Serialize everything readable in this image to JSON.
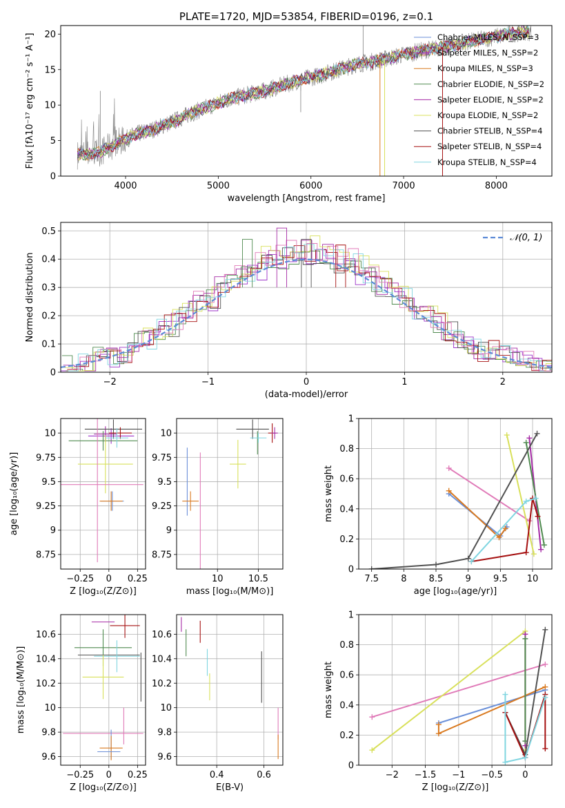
{
  "title": "PLATE=1720, MJD=53854, FIBERID=0196, z=0.1",
  "colors": {
    "Chabrier MILES": "#6a8fd8",
    "Salpeter MILES": "#9b30c8",
    "Kroupa MILES": "#d9791f",
    "Chabrier ELODIE": "#4f8a4f",
    "Salpeter ELODIE": "#a52aa5",
    "Kroupa ELODIE": "#d8e05a",
    "Chabrier STELIB": "#505050",
    "Salpeter STELIB": "#a50f0f",
    "Kroupa STELIB": "#7fd5e0",
    "spectrum": "#808080",
    "gaussian": "#5b8ad6",
    "pink": "#e07ab8"
  },
  "chart_data": [
    {
      "id": "spectrum",
      "type": "line",
      "xlabel": "wavelength [Angstrom, rest frame]",
      "ylabel": "Flux [fλ10⁻¹⁷ erg cm⁻² s⁻¹ A⁻¹]",
      "xlim": [
        3300,
        8600
      ],
      "ylim": [
        0,
        21.2
      ],
      "xticks": [
        4000,
        5000,
        6000,
        7000,
        8000
      ],
      "yticks": [
        0,
        5,
        10,
        15,
        20
      ],
      "legend_position": "top-right",
      "data_trend_x": [
        3480,
        3700,
        3900,
        4100,
        4300,
        4500,
        4700,
        4900,
        5100,
        5300,
        5500,
        5700,
        5900,
        6100,
        6300,
        6500,
        6700,
        6900,
        7100,
        7300,
        7500,
        7700,
        7900,
        8100,
        8300
      ],
      "data_trend_y": [
        3.0,
        3.2,
        4.6,
        5.8,
        6.6,
        7.6,
        8.8,
        9.8,
        10.8,
        11.4,
        12.0,
        12.8,
        13.6,
        14.2,
        15.0,
        15.8,
        16.2,
        16.8,
        17.4,
        17.9,
        18.3,
        18.9,
        19.4,
        19.9,
        20.3
      ],
      "series": [
        {
          "name": "Chabrier MILES, N_SSP=3"
        },
        {
          "name": "Salpeter MILES, N_SSP=2"
        },
        {
          "name": "Kroupa MILES, N_SSP=3"
        },
        {
          "name": "Chabrier ELODIE, N_SSP=2"
        },
        {
          "name": "Salpeter ELODIE, N_SSP=2"
        },
        {
          "name": "Kroupa ELODIE, N_SSP=2"
        },
        {
          "name": "Chabrier STELIB, N_SSP=4"
        },
        {
          "name": "Salpeter STELIB, N_SSP=4"
        },
        {
          "name": "Kroupa STELIB, N_SSP=4"
        }
      ]
    },
    {
      "id": "residuals",
      "type": "histogram",
      "xlabel": "(data-model)/error",
      "ylabel": "Normed distribution",
      "xlim": [
        -2.5,
        2.5
      ],
      "ylim": [
        0,
        0.53
      ],
      "xticks": [
        -2,
        -1,
        0,
        1,
        2
      ],
      "yticks": [
        0.0,
        0.1,
        0.2,
        0.3,
        0.4,
        0.5
      ],
      "legend": "𝒩(0, 1)",
      "legend_position": "top-right",
      "grid": true,
      "series_peaks": [
        {
          "name": "Salpeter ELODIE",
          "x": -0.25,
          "y": 0.51
        },
        {
          "name": "Chabrier ELODIE",
          "x": -0.6,
          "y": 0.47
        },
        {
          "name": "Chabrier STELIB",
          "x": 0.0,
          "y": 0.47
        },
        {
          "name": "Salpeter STELIB",
          "x": 0.35,
          "y": 0.45
        }
      ]
    },
    {
      "id": "age_vs_Z",
      "type": "errorbar",
      "xlabel": "Z [log₁₀(Z/Z⊙)]",
      "ylabel": "age  [log₁₀(age/yr)]",
      "xlim": [
        -0.42,
        0.32
      ],
      "ylim": [
        8.6,
        10.15
      ],
      "xticks": [
        -0.25,
        0.0,
        0.25
      ],
      "yticks": [
        8.75,
        9.0,
        9.25,
        9.5,
        9.75,
        10.0
      ],
      "points": [
        {
          "series": "Chabrier MILES",
          "x": 0.03,
          "y": 9.3,
          "xerr": 0.1,
          "yerr": 0.1
        },
        {
          "series": "Salpeter MILES",
          "x": 0.02,
          "y": 9.97,
          "xerr": 0.2,
          "yerr": 0.08
        },
        {
          "series": "Kroupa MILES",
          "x": 0.02,
          "y": 9.3,
          "xerr": 0.1,
          "yerr": 0.1
        },
        {
          "series": "Chabrier ELODIE",
          "x": -0.05,
          "y": 9.92,
          "xerr": 0.3,
          "yerr": 0.1
        },
        {
          "series": "Salpeter ELODIE",
          "x": -0.03,
          "y": 9.99,
          "xerr": 0.1,
          "yerr": 0.08
        },
        {
          "series": "Kroupa ELODIE",
          "x": -0.03,
          "y": 9.68,
          "xerr": 0.24,
          "yerr": 0.3
        },
        {
          "series": "Chabrier STELIB",
          "x": 0.04,
          "y": 10.04,
          "xerr": 0.25,
          "yerr": 0.1
        },
        {
          "series": "Salpeter STELIB",
          "x": 0.1,
          "y": 10.0,
          "xerr": 0.1,
          "yerr": 0.06
        },
        {
          "series": "Kroupa STELIB",
          "x": 0.07,
          "y": 9.95,
          "xerr": 0.1,
          "yerr": 0.1
        },
        {
          "series": "pink",
          "x": -0.1,
          "y": 9.47,
          "xerr": 0.4,
          "yerr": 0.8
        }
      ]
    },
    {
      "id": "age_vs_mass",
      "type": "errorbar",
      "xlabel": "mass [log₁₀(M/M⊙)]",
      "xlim": [
        9.5,
        10.8
      ],
      "ylim": [
        8.6,
        10.15
      ],
      "xticks": [
        10.0,
        10.5
      ],
      "yticks": [
        8.75,
        9.0,
        9.25,
        9.5,
        9.75,
        10.0
      ],
      "points": [
        {
          "series": "Chabrier MILES",
          "x": 9.63,
          "y": 9.5,
          "xerr": 0.0,
          "yerr": 0.35
        },
        {
          "series": "Kroupa MILES",
          "x": 9.67,
          "y": 9.3,
          "xerr": 0.1,
          "yerr": 0.1
        },
        {
          "series": "Kroupa ELODIE",
          "x": 10.25,
          "y": 9.68,
          "xerr": 0.1,
          "yerr": 0.25
        },
        {
          "series": "Chabrier ELODIE",
          "x": 10.49,
          "y": 9.9,
          "xerr": 0.0,
          "yerr": 0.12
        },
        {
          "series": "Chabrier STELIB",
          "x": 10.43,
          "y": 10.04,
          "xerr": 0.2,
          "yerr": 0.1
        },
        {
          "series": "Salpeter STELIB",
          "x": 10.67,
          "y": 10.0,
          "xerr": 0.05,
          "yerr": 0.1
        },
        {
          "series": "Salpeter ELODIE",
          "x": 10.7,
          "y": 10.0,
          "xerr": 0.04,
          "yerr": 0.06
        },
        {
          "series": "Kroupa STELIB",
          "x": 10.5,
          "y": 9.95,
          "xerr": 0.1,
          "yerr": 0.05
        },
        {
          "series": "pink",
          "x": 9.79,
          "y": 9.2,
          "xerr": 0.0,
          "yerr": 0.6
        }
      ]
    },
    {
      "id": "weight_vs_age",
      "type": "line",
      "xlabel": "age  [log₁₀(age/yr)]",
      "ylabel": "mass weight",
      "xlim": [
        7.3,
        10.3
      ],
      "ylim": [
        0,
        1
      ],
      "xticks": [
        7.5,
        8.0,
        8.5,
        9.0,
        9.5,
        10.0
      ],
      "yticks": [
        0.0,
        0.2,
        0.4,
        0.6,
        0.8,
        1.0
      ],
      "series": [
        {
          "series": "Chabrier MILES",
          "x": [
            8.7,
            9.5,
            9.6
          ],
          "y": [
            0.5,
            0.22,
            0.28
          ]
        },
        {
          "series": "Kroupa MILES",
          "x": [
            8.7,
            9.48,
            9.58
          ],
          "y": [
            0.52,
            0.21,
            0.27
          ]
        },
        {
          "series": "pink",
          "x": [
            8.7,
            9.95
          ],
          "y": [
            0.67,
            0.32
          ]
        },
        {
          "series": "Kroupa ELODIE",
          "x": [
            9.6,
            10.02
          ],
          "y": [
            0.89,
            0.1
          ]
        },
        {
          "series": "Salpeter ELODIE",
          "x": [
            9.95,
            10.13
          ],
          "y": [
            0.87,
            0.13
          ]
        },
        {
          "series": "Chabrier ELODIE",
          "x": [
            9.9,
            10.18
          ],
          "y": [
            0.84,
            0.16
          ]
        },
        {
          "series": "Chabrier STELIB",
          "x": [
            7.5,
            8.5,
            9.0,
            10.07
          ],
          "y": [
            0.0,
            0.03,
            0.07,
            0.9
          ]
        },
        {
          "series": "Salpeter STELIB",
          "x": [
            9.05,
            9.9,
            10.0,
            10.08
          ],
          "y": [
            0.05,
            0.11,
            0.47,
            0.35
          ]
        },
        {
          "series": "Kroupa STELIB",
          "x": [
            9.05,
            9.9,
            10.05
          ],
          "y": [
            0.05,
            0.45,
            0.47
          ]
        }
      ]
    },
    {
      "id": "mass_vs_Z",
      "type": "errorbar",
      "xlabel": "Z [log₁₀(Z/Z⊙)]",
      "ylabel": "mass [log₁₀(M/M⊙)]",
      "xlim": [
        -0.42,
        0.32
      ],
      "ylim": [
        9.53,
        10.76
      ],
      "xticks": [
        -0.25,
        0.0,
        0.25
      ],
      "yticks": [
        9.6,
        9.8,
        10.0,
        10.2,
        10.4,
        10.6
      ],
      "points": [
        {
          "series": "Salpeter ELODIE",
          "x": -0.05,
          "y": 10.7,
          "xerr": 0.1,
          "yerr": 0.0
        },
        {
          "series": "Salpeter STELIB",
          "x": 0.14,
          "y": 10.67,
          "xerr": 0.13,
          "yerr": 0.1
        },
        {
          "series": "Chabrier ELODIE",
          "x": -0.05,
          "y": 10.49,
          "xerr": 0.25,
          "yerr": 0.15
        },
        {
          "series": "Chabrier STELIB",
          "x": 0.0,
          "y": 10.43,
          "xerr": 0.27,
          "yerr": 0.0
        },
        {
          "series": "Chabrier STELIB",
          "x": 0.28,
          "y": 10.25,
          "xerr": 0.0,
          "yerr": 0.2
        },
        {
          "series": "Kroupa STELIB",
          "x": 0.07,
          "y": 10.42,
          "xerr": 0.2,
          "yerr": 0.13
        },
        {
          "series": "Kroupa ELODIE",
          "x": -0.05,
          "y": 10.25,
          "xerr": 0.18,
          "yerr": 0.18
        },
        {
          "series": "pink",
          "x": -0.05,
          "y": 9.79,
          "xerr": 0.35,
          "yerr": 0.0
        },
        {
          "series": "pink",
          "x": 0.13,
          "y": 9.85,
          "xerr": 0.0,
          "yerr": 0.15
        },
        {
          "series": "Chabrier MILES",
          "x": 0.02,
          "y": 9.7,
          "xerr": 0.0,
          "yerr": 0.12
        },
        {
          "series": "Kroupa MILES",
          "x": 0.02,
          "y": 9.67,
          "xerr": 0.1,
          "yerr": 0.1
        },
        {
          "series": "Chabrier MILES",
          "x": 0.0,
          "y": 9.64,
          "xerr": 0.1,
          "yerr": 0.0
        }
      ]
    },
    {
      "id": "mass_vs_EBV",
      "type": "errorbar",
      "xlabel": "E(B-V)",
      "xlim": [
        0.23,
        0.68
      ],
      "ylim": [
        9.53,
        10.76
      ],
      "xticks": [
        0.4,
        0.6
      ],
      "yticks": [
        9.6,
        9.8,
        10.0,
        10.2,
        10.4,
        10.6
      ],
      "points": [
        {
          "series": "Salpeter ELODIE",
          "x": 0.25,
          "y": 10.68,
          "xerr": 0.0,
          "yerr": 0.06
        },
        {
          "series": "Chabrier ELODIE",
          "x": 0.27,
          "y": 10.53,
          "xerr": 0.0,
          "yerr": 0.11
        },
        {
          "series": "Salpeter STELIB",
          "x": 0.33,
          "y": 10.62,
          "xerr": 0.0,
          "yerr": 0.09
        },
        {
          "series": "Kroupa STELIB",
          "x": 0.36,
          "y": 10.37,
          "xerr": 0.0,
          "yerr": 0.11
        },
        {
          "series": "Kroupa ELODIE",
          "x": 0.37,
          "y": 10.17,
          "xerr": 0.0,
          "yerr": 0.11
        },
        {
          "series": "Chabrier STELIB",
          "x": 0.59,
          "y": 10.25,
          "xerr": 0.0,
          "yerr": 0.21
        },
        {
          "series": "pink",
          "x": 0.66,
          "y": 9.87,
          "xerr": 0.0,
          "yerr": 0.13
        },
        {
          "series": "Kroupa MILES",
          "x": 0.66,
          "y": 9.68,
          "xerr": 0.0,
          "yerr": 0.1
        }
      ]
    },
    {
      "id": "weight_vs_Z",
      "type": "line",
      "xlabel": "Z [log₁₀(Z/Z⊙)]",
      "ylabel": "mass weight",
      "xlim": [
        -2.5,
        0.4
      ],
      "ylim": [
        0,
        1
      ],
      "xticks": [
        -2.0,
        -1.5,
        -1.0,
        -0.5,
        0.0
      ],
      "yticks": [
        0.0,
        0.2,
        0.4,
        0.6,
        0.8,
        1.0
      ],
      "series": [
        {
          "series": "pink",
          "x": [
            -2.3,
            0.3
          ],
          "y": [
            0.32,
            0.67
          ]
        },
        {
          "series": "Kroupa ELODIE",
          "x": [
            -2.3,
            0.0,
            0.0
          ],
          "y": [
            0.1,
            0.89,
            0.1
          ]
        },
        {
          "series": "Chabrier MILES",
          "x": [
            -1.3,
            0.3
          ],
          "y": [
            0.28,
            0.5
          ]
        },
        {
          "series": "Kroupa MILES",
          "x": [
            -1.3,
            -1.3,
            0.3
          ],
          "y": [
            0.27,
            0.21,
            0.52
          ]
        },
        {
          "series": "Salpeter ELODIE",
          "x": [
            0.0,
            0.0
          ],
          "y": [
            0.87,
            0.13
          ]
        },
        {
          "series": "Chabrier ELODIE",
          "x": [
            0.0,
            0.0
          ],
          "y": [
            0.84,
            0.16
          ]
        },
        {
          "series": "Chabrier STELIB",
          "x": [
            -0.3,
            0.0,
            0.3
          ],
          "y": [
            0.35,
            0.07,
            0.9
          ]
        },
        {
          "series": "Salpeter STELIB",
          "x": [
            -0.3,
            0.0,
            0.3,
            0.3
          ],
          "y": [
            0.35,
            0.05,
            0.47,
            0.11
          ]
        },
        {
          "series": "Kroupa STELIB",
          "x": [
            -0.3,
            -0.3,
            0.0,
            0.3
          ],
          "y": [
            0.47,
            0.02,
            0.05,
            0.45
          ]
        }
      ]
    }
  ]
}
